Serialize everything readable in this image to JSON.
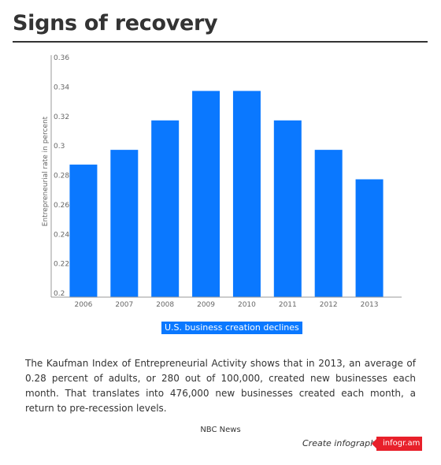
{
  "header": {
    "title": "Signs of recovery"
  },
  "chart_data": {
    "type": "bar",
    "categories": [
      "2006",
      "2007",
      "2008",
      "2009",
      "2010",
      "2011",
      "2012",
      "2013"
    ],
    "series": [
      {
        "name": "U.S. business creation declines",
        "values": [
          0.29,
          0.3,
          0.32,
          0.34,
          0.34,
          0.32,
          0.3,
          0.28
        ],
        "color": "#0a78ff"
      }
    ],
    "ylabel": "Entrepreneurial rate in percent",
    "ylim": [
      0.2,
      0.36
    ],
    "yticks": [
      0.2,
      0.22,
      0.24,
      0.26,
      0.28,
      0.3,
      0.32,
      0.34,
      0.36
    ],
    "ytick_labels": [
      "0.2",
      "0.22",
      "0.24",
      "0.26",
      "0.28",
      "0.3",
      "0.32",
      "0.34",
      "0.36"
    ],
    "grid": false,
    "legend_position": "bottom-center"
  },
  "legend": {
    "label": "U.S. business creation declines"
  },
  "description": "The Kaufman Index of Entrepreneurial Activity shows that in 2013, an average of 0.28 percent of adults, or 280 out of 100,000, created new businesses each month. That translates into 476,000 new businesses created each month, a return to pre-recession levels.",
  "footer": {
    "source": "NBC News",
    "credit": "Create infographics",
    "badge": "infogr.am",
    "badge_color": "#e8202a"
  }
}
